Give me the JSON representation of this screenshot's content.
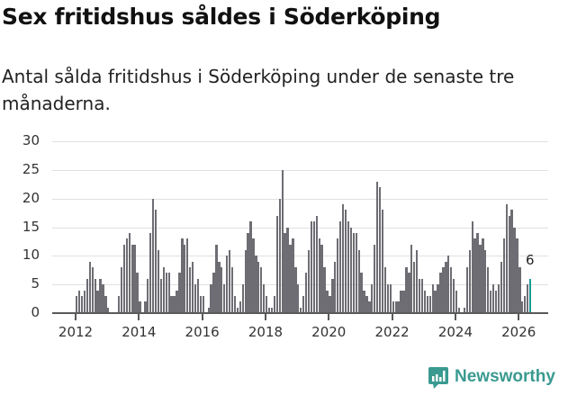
{
  "header": {
    "title": "Sex fritidshus såldes i Söderköping",
    "subtitle": "Antal sålda fritidshus i Söderköping under de senaste tre månaderna."
  },
  "branding": {
    "logo_text": "Newsworthy",
    "logo_icon": "bar-chart-speech-bubble-icon",
    "color": "#3a9a90"
  },
  "colors": {
    "bar": "#6e6d73",
    "highlight": "#1a9a91",
    "grid": "#e0e0e0",
    "axis": "#5a5a5a"
  },
  "chart_data": {
    "type": "bar",
    "title": "Sex fritidshus såldes i Söderköping",
    "subtitle": "Antal sålda fritidshus i Söderköping under de senaste tre månaderna.",
    "xlabel": "",
    "ylabel": "",
    "ylim": [
      0,
      30
    ],
    "yticks": [
      0,
      5,
      10,
      15,
      20,
      25,
      30
    ],
    "xticks": [
      "2012",
      "2014",
      "2016",
      "2018",
      "2020",
      "2022",
      "2024",
      "2026"
    ],
    "grid": true,
    "legend": "none",
    "start": "2012-01",
    "frequency": "monthly",
    "highlight_last": true,
    "last_value_label": "6",
    "values": [
      3,
      4,
      3,
      4,
      6,
      9,
      8,
      6,
      4,
      6,
      5,
      3,
      1,
      0,
      0,
      0,
      3,
      8,
      12,
      13,
      14,
      12,
      12,
      7,
      2,
      0,
      2,
      6,
      14,
      20,
      18,
      11,
      6,
      8,
      7,
      7,
      3,
      3,
      4,
      7,
      13,
      12,
      13,
      8,
      9,
      5,
      6,
      3,
      3,
      0,
      1,
      5,
      7,
      12,
      9,
      8,
      5,
      10,
      11,
      8,
      3,
      1,
      2,
      5,
      11,
      14,
      16,
      13,
      10,
      9,
      8,
      5,
      3,
      1,
      1,
      3,
      17,
      20,
      25,
      14,
      15,
      12,
      13,
      8,
      5,
      1,
      3,
      7,
      11,
      16,
      16,
      17,
      13,
      12,
      8,
      4,
      3,
      6,
      9,
      13,
      16,
      19,
      18,
      16,
      15,
      14,
      14,
      11,
      7,
      4,
      3,
      2,
      5,
      12,
      23,
      22,
      18,
      8,
      5,
      5,
      2,
      2,
      2,
      4,
      4,
      8,
      7,
      12,
      9,
      11,
      6,
      6,
      4,
      3,
      3,
      5,
      4,
      5,
      7,
      8,
      9,
      10,
      8,
      6,
      4,
      1,
      0,
      1,
      8,
      11,
      16,
      13,
      14,
      12,
      13,
      11,
      8,
      4,
      5,
      4,
      5,
      9,
      13,
      19,
      17,
      18,
      15,
      13,
      8,
      2,
      3,
      5,
      6
    ]
  }
}
